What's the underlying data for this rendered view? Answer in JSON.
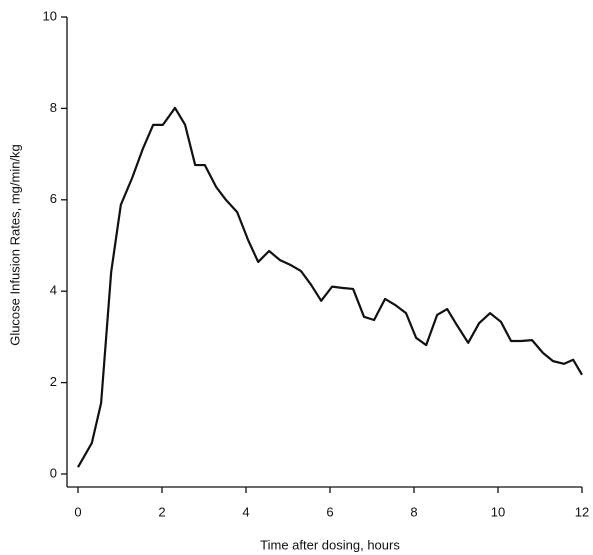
{
  "chart_data": {
    "type": "line",
    "x_label": "Time after dosing, hours",
    "y_label": "Glucose Infusion Rates, mg/min/kg",
    "x": [
      0,
      0.33,
      0.55,
      0.79,
      1.02,
      1.29,
      1.55,
      1.79,
      2.02,
      2.31,
      2.55,
      2.79,
      3.02,
      3.29,
      3.52,
      3.79,
      4.05,
      4.29,
      4.55,
      4.81,
      5.07,
      5.31,
      5.55,
      5.79,
      6.05,
      6.31,
      6.55,
      6.81,
      7.05,
      7.31,
      7.55,
      7.81,
      8.05,
      8.29,
      8.55,
      8.79,
      9.02,
      9.29,
      9.55,
      9.81,
      10.07,
      10.31,
      10.55,
      10.81,
      11.07,
      11.31,
      11.57,
      11.79,
      12
    ],
    "series": [
      {
        "color": "#111111",
        "values": [
          0.15,
          0.68,
          1.55,
          4.42,
          5.89,
          6.48,
          7.13,
          7.64,
          7.64,
          8.01,
          7.64,
          6.76,
          6.76,
          6.28,
          6.0,
          5.73,
          5.12,
          4.64,
          4.88,
          4.68,
          4.57,
          4.44,
          4.14,
          3.79,
          4.1,
          4.07,
          4.05,
          3.44,
          3.37,
          3.83,
          3.7,
          3.52,
          2.98,
          2.82,
          3.48,
          3.61,
          3.26,
          2.87,
          3.3,
          3.52,
          3.33,
          2.91,
          2.91,
          2.93,
          2.65,
          2.47,
          2.41,
          2.5,
          2.17
        ]
      }
    ],
    "xlim": [
      0,
      12
    ],
    "xticks": [
      0,
      2,
      4,
      6,
      8,
      10,
      12
    ],
    "ylim": [
      0,
      10
    ],
    "yticks": [
      0,
      2,
      4,
      6,
      8,
      10
    ]
  }
}
